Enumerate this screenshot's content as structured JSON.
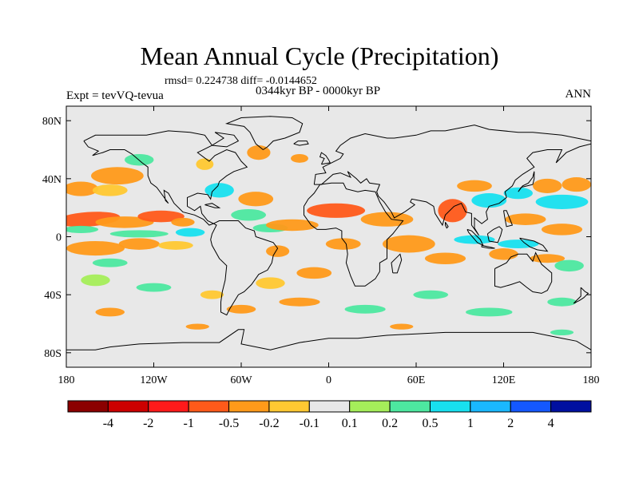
{
  "title": "Mean Annual Cycle (Precipitation)",
  "stats": "rmsd= 0.224738 diff= -0.0144652",
  "subtitle": "0344kyr BP - 0000kyr BP",
  "left_label": "Expt = tevVQ-tevua",
  "right_label": "ANN",
  "y_axis": {
    "ticks": [
      {
        "lat": 80,
        "label": "80N"
      },
      {
        "lat": 40,
        "label": "40N"
      },
      {
        "lat": 0,
        "label": "0"
      },
      {
        "lat": -40,
        "label": "40S"
      },
      {
        "lat": -80,
        "label": "80S"
      }
    ]
  },
  "x_axis": {
    "ticks": [
      {
        "lon": -180,
        "label": "180"
      },
      {
        "lon": -120,
        "label": "120W"
      },
      {
        "lon": -60,
        "label": "60W"
      },
      {
        "lon": 0,
        "label": "0"
      },
      {
        "lon": 60,
        "label": "60E"
      },
      {
        "lon": 120,
        "label": "120E"
      },
      {
        "lon": 180,
        "label": "180"
      }
    ]
  },
  "colorbar": {
    "colors": [
      "#8b0000",
      "#cc0000",
      "#ff1a1a",
      "#ff5a1a",
      "#ff9a1a",
      "#ffc832",
      "#e8e8e8",
      "#a5ee5a",
      "#4de8a0",
      "#18e0ef",
      "#1ab8ff",
      "#1458ff",
      "#0010a0"
    ],
    "labels": [
      "-4",
      "-2",
      "-1",
      "-0.5",
      "-0.2",
      "-0.1",
      "0.1",
      "0.2",
      "0.5",
      "1",
      "2",
      "4"
    ]
  },
  "map_colors": {
    "background": "#e8e8e8",
    "coast": "#000000"
  },
  "anomaly_regions": [
    {
      "lon": -165,
      "lat": 12,
      "rx": 22,
      "ry": 5,
      "level": 3,
      "rot": -4
    },
    {
      "lon": -140,
      "lat": 10,
      "rx": 20,
      "ry": 4,
      "level": 4
    },
    {
      "lon": -115,
      "lat": 14,
      "rx": 16,
      "ry": 4,
      "level": 3
    },
    {
      "lon": -100,
      "lat": 10,
      "rx": 8,
      "ry": 3,
      "level": 4
    },
    {
      "lon": -170,
      "lat": 5,
      "rx": 12,
      "ry": 2.5,
      "level": 8
    },
    {
      "lon": -130,
      "lat": 2,
      "rx": 20,
      "ry": 2.5,
      "level": 8
    },
    {
      "lon": -95,
      "lat": 3,
      "rx": 10,
      "ry": 3,
      "level": 9
    },
    {
      "lon": -160,
      "lat": -8,
      "rx": 20,
      "ry": 5,
      "level": 4
    },
    {
      "lon": -130,
      "lat": -5,
      "rx": 14,
      "ry": 4,
      "level": 4
    },
    {
      "lon": -105,
      "lat": -6,
      "rx": 12,
      "ry": 3,
      "level": 5
    },
    {
      "lon": -150,
      "lat": -18,
      "rx": 12,
      "ry": 3,
      "level": 8
    },
    {
      "lon": -170,
      "lat": 33,
      "rx": 12,
      "ry": 5,
      "level": 4
    },
    {
      "lon": -145,
      "lat": 42,
      "rx": 18,
      "ry": 6,
      "level": 4
    },
    {
      "lon": -150,
      "lat": 32,
      "rx": 12,
      "ry": 4,
      "level": 5
    },
    {
      "lon": -130,
      "lat": 53,
      "rx": 10,
      "ry": 4,
      "level": 8
    },
    {
      "lon": -85,
      "lat": 50,
      "rx": 6,
      "ry": 4,
      "level": 5
    },
    {
      "lon": -75,
      "lat": 32,
      "rx": 10,
      "ry": 5,
      "level": 9
    },
    {
      "lon": -50,
      "lat": 26,
      "rx": 12,
      "ry": 5,
      "level": 4
    },
    {
      "lon": -55,
      "lat": 15,
      "rx": 12,
      "ry": 4,
      "level": 8
    },
    {
      "lon": -40,
      "lat": 6,
      "rx": 12,
      "ry": 3,
      "level": 8
    },
    {
      "lon": -48,
      "lat": 58,
      "rx": 8,
      "ry": 5,
      "level": 4
    },
    {
      "lon": -20,
      "lat": 54,
      "rx": 6,
      "ry": 3,
      "level": 4
    },
    {
      "lon": -25,
      "lat": 8,
      "rx": 18,
      "ry": 4,
      "level": 4
    },
    {
      "lon": 5,
      "lat": 18,
      "rx": 20,
      "ry": 5,
      "level": 3
    },
    {
      "lon": 40,
      "lat": 12,
      "rx": 18,
      "ry": 5,
      "level": 4
    },
    {
      "lon": 55,
      "lat": -5,
      "rx": 18,
      "ry": 6,
      "level": 4
    },
    {
      "lon": 10,
      "lat": -5,
      "rx": 12,
      "ry": 4,
      "level": 4
    },
    {
      "lon": -10,
      "lat": -25,
      "rx": 12,
      "ry": 4,
      "level": 4
    },
    {
      "lon": -35,
      "lat": -10,
      "rx": 8,
      "ry": 4,
      "level": 4
    },
    {
      "lon": -40,
      "lat": -32,
      "rx": 10,
      "ry": 4,
      "level": 5
    },
    {
      "lon": 85,
      "lat": 18,
      "rx": 10,
      "ry": 8,
      "level": 3
    },
    {
      "lon": 100,
      "lat": 35,
      "rx": 12,
      "ry": 4,
      "level": 4
    },
    {
      "lon": 110,
      "lat": 25,
      "rx": 12,
      "ry": 5,
      "level": 9
    },
    {
      "lon": 130,
      "lat": 30,
      "rx": 10,
      "ry": 4,
      "level": 9
    },
    {
      "lon": 150,
      "lat": 35,
      "rx": 10,
      "ry": 5,
      "level": 4
    },
    {
      "lon": 135,
      "lat": 12,
      "rx": 14,
      "ry": 4,
      "level": 4
    },
    {
      "lon": 100,
      "lat": -2,
      "rx": 14,
      "ry": 3,
      "level": 9
    },
    {
      "lon": 130,
      "lat": -5,
      "rx": 14,
      "ry": 3,
      "level": 9
    },
    {
      "lon": 160,
      "lat": 5,
      "rx": 14,
      "ry": 4,
      "level": 4
    },
    {
      "lon": 160,
      "lat": 24,
      "rx": 18,
      "ry": 5,
      "level": 9
    },
    {
      "lon": 170,
      "lat": 36,
      "rx": 10,
      "ry": 5,
      "level": 4
    },
    {
      "lon": 80,
      "lat": -15,
      "rx": 14,
      "ry": 4,
      "level": 4
    },
    {
      "lon": 120,
      "lat": -12,
      "rx": 10,
      "ry": 4,
      "level": 4
    },
    {
      "lon": 150,
      "lat": -15,
      "rx": 12,
      "ry": 3,
      "level": 4
    },
    {
      "lon": 165,
      "lat": -20,
      "rx": 10,
      "ry": 4,
      "level": 8
    },
    {
      "lon": -160,
      "lat": -30,
      "rx": 10,
      "ry": 4,
      "level": 7
    },
    {
      "lon": -120,
      "lat": -35,
      "rx": 12,
      "ry": 3,
      "level": 8
    },
    {
      "lon": -80,
      "lat": -40,
      "rx": 8,
      "ry": 3,
      "level": 5
    },
    {
      "lon": -60,
      "lat": -50,
      "rx": 10,
      "ry": 3,
      "level": 4
    },
    {
      "lon": -20,
      "lat": -45,
      "rx": 14,
      "ry": 3,
      "level": 4
    },
    {
      "lon": 25,
      "lat": -50,
      "rx": 14,
      "ry": 3,
      "level": 8
    },
    {
      "lon": 70,
      "lat": -40,
      "rx": 12,
      "ry": 3,
      "level": 8
    },
    {
      "lon": 110,
      "lat": -52,
      "rx": 16,
      "ry": 3,
      "level": 8
    },
    {
      "lon": 160,
      "lat": -45,
      "rx": 10,
      "ry": 3,
      "level": 8
    },
    {
      "lon": -150,
      "lat": -52,
      "rx": 10,
      "ry": 3,
      "level": 4
    },
    {
      "lon": -90,
      "lat": -62,
      "rx": 8,
      "ry": 2,
      "level": 4
    },
    {
      "lon": 50,
      "lat": -62,
      "rx": 8,
      "ry": 2,
      "level": 4
    },
    {
      "lon": 160,
      "lat": -66,
      "rx": 8,
      "ry": 2,
      "level": 8
    }
  ]
}
